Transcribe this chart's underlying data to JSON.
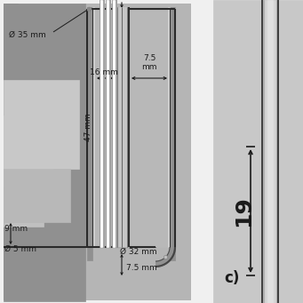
{
  "bg": "#f0f0f0",
  "left_bg": "#a8a8a8",
  "left_inner_bg": "#b8b8b8",
  "right_bg": "#c8c8c8",
  "dark": "#2a2a2a",
  "mid_grey": "#909090",
  "light_grey": "#d8d8d8",
  "ann_color": "#1a1a1a",
  "fs": 6.5,
  "labels": {
    "diam35": "Ø 35 mm",
    "dim16": "16 mm",
    "dim75": "7.5\nmm",
    "dim47": "47 mm",
    "dim9": "9 mm",
    "diam5": "Ø 5 mm",
    "diam32": "Ø 32 mm",
    "dim75b": "7.5 mm",
    "c": "c)",
    "right19": "19"
  }
}
